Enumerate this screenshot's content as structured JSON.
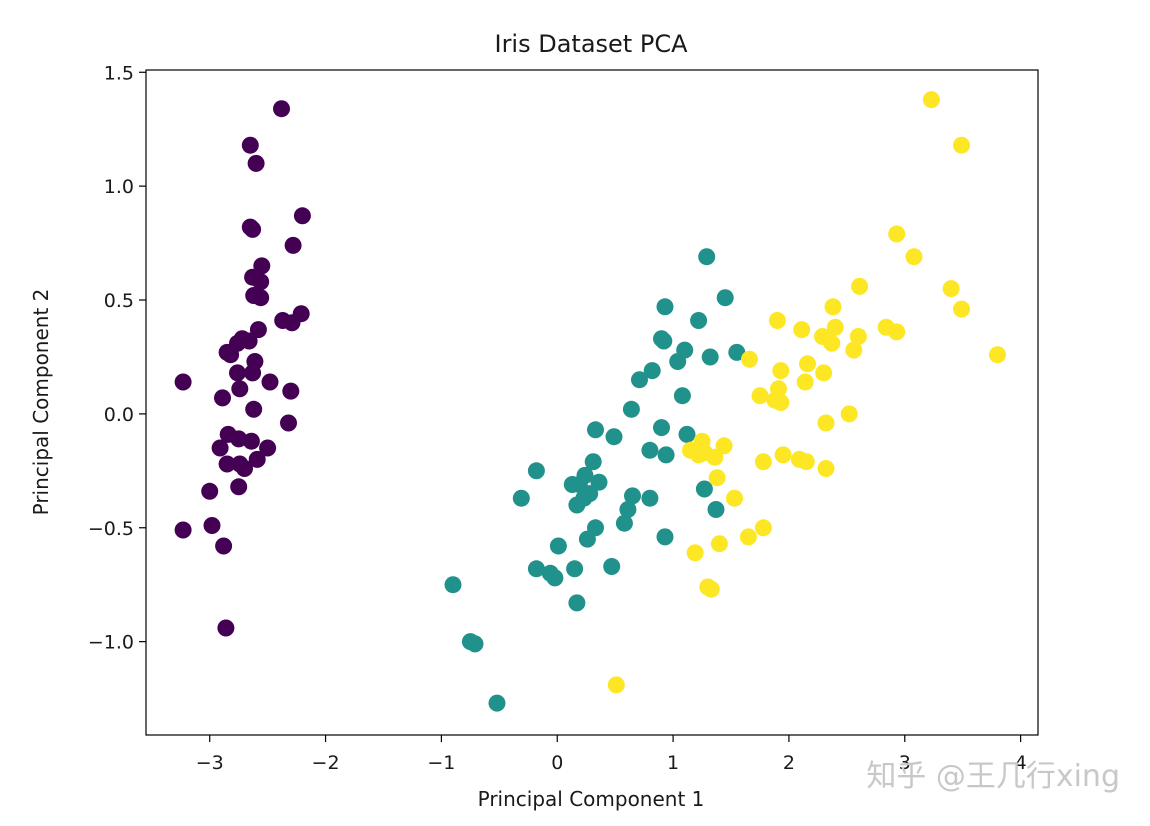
{
  "chart_data": {
    "type": "scatter",
    "title": "Iris Dataset PCA",
    "xlabel": "Principal Component 1",
    "ylabel": "Principal Component 2",
    "xlim": [
      -3.55,
      4.15
    ],
    "ylim": [
      -1.41,
      1.51
    ],
    "xticks": [
      -3,
      -2,
      -1,
      0,
      1,
      2,
      3,
      4
    ],
    "xtick_labels": [
      "−3",
      "−2",
      "−1",
      "0",
      "1",
      "2",
      "3",
      "4"
    ],
    "yticks": [
      -1.0,
      -0.5,
      0.0,
      0.5,
      1.0,
      1.5
    ],
    "ytick_labels": [
      "−1.0",
      "−0.5",
      "0.0",
      "0.5",
      "1.0",
      "1.5"
    ],
    "grid": false,
    "legend": "none",
    "colors": [
      "#440154",
      "#21918c",
      "#fde725"
    ],
    "watermark": "知乎 @王几行xing",
    "series": [
      {
        "points": [
          [
            -2.38,
            1.34
          ],
          [
            -2.65,
            1.18
          ],
          [
            -2.6,
            1.1
          ],
          [
            -2.2,
            0.87
          ],
          [
            -2.65,
            0.82
          ],
          [
            -2.63,
            0.81
          ],
          [
            -2.28,
            0.74
          ],
          [
            -2.55,
            0.65
          ],
          [
            -2.63,
            0.6
          ],
          [
            -2.56,
            0.58
          ],
          [
            -2.62,
            0.52
          ],
          [
            -2.56,
            0.51
          ],
          [
            -2.21,
            0.44
          ],
          [
            -2.29,
            0.4
          ],
          [
            -2.37,
            0.41
          ],
          [
            -2.58,
            0.37
          ],
          [
            -2.72,
            0.33
          ],
          [
            -2.66,
            0.32
          ],
          [
            -2.76,
            0.31
          ],
          [
            -2.85,
            0.27
          ],
          [
            -2.82,
            0.26
          ],
          [
            -2.61,
            0.23
          ],
          [
            -2.76,
            0.18
          ],
          [
            -2.63,
            0.18
          ],
          [
            -2.48,
            0.14
          ],
          [
            -3.23,
            0.14
          ],
          [
            -2.74,
            0.11
          ],
          [
            -2.3,
            0.1
          ],
          [
            -2.89,
            0.07
          ],
          [
            -2.62,
            0.02
          ],
          [
            -2.32,
            -0.04
          ],
          [
            -2.84,
            -0.09
          ],
          [
            -2.75,
            -0.11
          ],
          [
            -2.64,
            -0.12
          ],
          [
            -2.5,
            -0.15
          ],
          [
            -2.91,
            -0.15
          ],
          [
            -2.59,
            -0.2
          ],
          [
            -2.74,
            -0.22
          ],
          [
            -2.85,
            -0.22
          ],
          [
            -2.7,
            -0.24
          ],
          [
            -2.75,
            -0.32
          ],
          [
            -3.0,
            -0.34
          ],
          [
            -3.23,
            -0.51
          ],
          [
            -2.98,
            -0.49
          ],
          [
            -2.88,
            -0.58
          ],
          [
            -2.86,
            -0.94
          ]
        ]
      },
      {
        "points": [
          [
            1.29,
            0.69
          ],
          [
            1.45,
            0.51
          ],
          [
            0.93,
            0.47
          ],
          [
            1.22,
            0.41
          ],
          [
            0.9,
            0.33
          ],
          [
            0.92,
            0.32
          ],
          [
            1.1,
            0.28
          ],
          [
            1.55,
            0.27
          ],
          [
            1.32,
            0.25
          ],
          [
            1.04,
            0.23
          ],
          [
            0.82,
            0.19
          ],
          [
            0.71,
            0.15
          ],
          [
            1.08,
            0.08
          ],
          [
            0.64,
            0.02
          ],
          [
            0.33,
            -0.07
          ],
          [
            0.9,
            -0.06
          ],
          [
            0.49,
            -0.1
          ],
          [
            1.12,
            -0.09
          ],
          [
            0.8,
            -0.16
          ],
          [
            0.94,
            -0.18
          ],
          [
            0.31,
            -0.21
          ],
          [
            0.24,
            -0.27
          ],
          [
            -0.18,
            -0.25
          ],
          [
            0.13,
            -0.31
          ],
          [
            0.19,
            -0.31
          ],
          [
            0.28,
            -0.35
          ],
          [
            0.36,
            -0.3
          ],
          [
            0.23,
            -0.37
          ],
          [
            -0.31,
            -0.37
          ],
          [
            0.65,
            -0.36
          ],
          [
            0.8,
            -0.37
          ],
          [
            1.27,
            -0.33
          ],
          [
            0.17,
            -0.4
          ],
          [
            0.61,
            -0.42
          ],
          [
            1.37,
            -0.42
          ],
          [
            0.33,
            -0.5
          ],
          [
            0.58,
            -0.48
          ],
          [
            0.93,
            -0.54
          ],
          [
            0.26,
            -0.55
          ],
          [
            0.01,
            -0.58
          ],
          [
            -0.18,
            -0.68
          ],
          [
            0.47,
            -0.67
          ],
          [
            0.15,
            -0.68
          ],
          [
            -0.06,
            -0.7
          ],
          [
            -0.02,
            -0.72
          ],
          [
            0.17,
            -0.83
          ],
          [
            -0.9,
            -0.75
          ],
          [
            -0.75,
            -1.0
          ],
          [
            -0.71,
            -1.01
          ],
          [
            -0.52,
            -1.27
          ]
        ]
      },
      {
        "points": [
          [
            3.23,
            1.38
          ],
          [
            3.49,
            1.18
          ],
          [
            2.93,
            0.79
          ],
          [
            3.08,
            0.69
          ],
          [
            2.61,
            0.56
          ],
          [
            3.4,
            0.55
          ],
          [
            2.38,
            0.47
          ],
          [
            3.49,
            0.46
          ],
          [
            1.9,
            0.41
          ],
          [
            2.11,
            0.37
          ],
          [
            2.4,
            0.38
          ],
          [
            2.84,
            0.38
          ],
          [
            2.93,
            0.36
          ],
          [
            2.29,
            0.34
          ],
          [
            2.6,
            0.34
          ],
          [
            2.37,
            0.31
          ],
          [
            2.56,
            0.28
          ],
          [
            3.8,
            0.26
          ],
          [
            1.66,
            0.24
          ],
          [
            2.16,
            0.22
          ],
          [
            1.93,
            0.19
          ],
          [
            2.3,
            0.18
          ],
          [
            2.14,
            0.14
          ],
          [
            1.91,
            0.11
          ],
          [
            1.75,
            0.08
          ],
          [
            1.88,
            0.06
          ],
          [
            1.93,
            0.05
          ],
          [
            2.52,
            -0.0
          ],
          [
            2.32,
            -0.04
          ],
          [
            1.25,
            -0.12
          ],
          [
            1.44,
            -0.14
          ],
          [
            1.15,
            -0.16
          ],
          [
            1.27,
            -0.17
          ],
          [
            1.22,
            -0.18
          ],
          [
            1.36,
            -0.19
          ],
          [
            1.95,
            -0.18
          ],
          [
            1.78,
            -0.21
          ],
          [
            2.09,
            -0.2
          ],
          [
            2.15,
            -0.21
          ],
          [
            2.32,
            -0.24
          ],
          [
            1.38,
            -0.28
          ],
          [
            1.53,
            -0.37
          ],
          [
            1.78,
            -0.5
          ],
          [
            1.65,
            -0.54
          ],
          [
            1.4,
            -0.57
          ],
          [
            1.19,
            -0.61
          ],
          [
            1.3,
            -0.76
          ],
          [
            1.33,
            -0.77
          ],
          [
            0.51,
            -1.19
          ]
        ]
      }
    ]
  }
}
